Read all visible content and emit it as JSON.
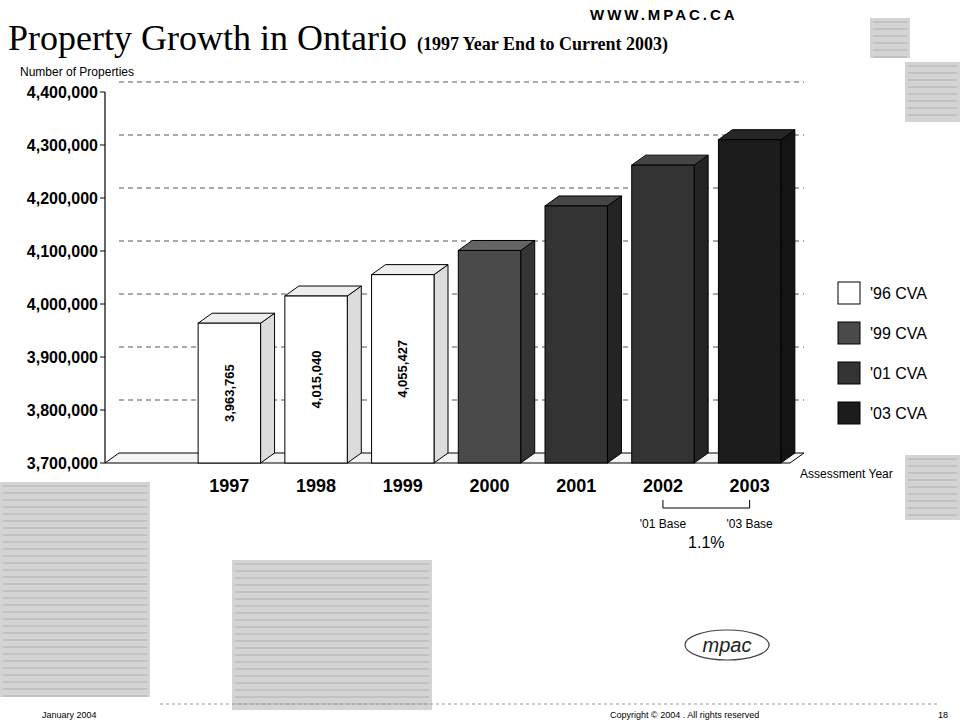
{
  "chart_data": {
    "type": "bar",
    "title": "Property Growth in Ontario",
    "subtitle": "(1997 Year End to Current 2003)",
    "y_label": "Number of Properties",
    "x_label": "Assessment Year",
    "categories": [
      "1997",
      "1998",
      "1999",
      "2000",
      "2001",
      "2002",
      "2003"
    ],
    "series": [
      {
        "name": "'96 CVA",
        "color": "#ffffff",
        "values": [
          3963765,
          4015040,
          4055427,
          null,
          null,
          null,
          null
        ],
        "value_labels": [
          "3,963,765",
          "4,015,040",
          "4,055,427",
          null,
          null,
          null,
          null
        ]
      },
      {
        "name": "'99 CVA",
        "color": "#4a4a4a",
        "values": [
          null,
          null,
          null,
          4101000,
          null,
          null,
          null
        ]
      },
      {
        "name": "'01 CVA",
        "color": "#333333",
        "values": [
          null,
          null,
          null,
          null,
          4185000,
          4262000,
          null
        ]
      },
      {
        "name": "'03 CVA",
        "color": "#1c1c1c",
        "values": [
          null,
          null,
          null,
          null,
          null,
          null,
          4310000
        ]
      }
    ],
    "stacked": true,
    "data_labels": true,
    "grid": true,
    "legend": "right",
    "ylim": [
      3700000,
      4400000
    ],
    "yticks": [
      {
        "value": 3700000,
        "label": "3,700,000"
      },
      {
        "value": 3800000,
        "label": "3,800,000"
      },
      {
        "value": 3900000,
        "label": "3,900,000"
      },
      {
        "value": 4000000,
        "label": "4,000,000"
      },
      {
        "value": 4100000,
        "label": "4,100,000"
      },
      {
        "value": 4200000,
        "label": "4,200,000"
      },
      {
        "value": 4300000,
        "label": "4,300,000"
      },
      {
        "value": 4400000,
        "label": "4,400,000"
      }
    ],
    "annotations": [
      {
        "text": "'01 Base"
      },
      {
        "text": "'03 Base"
      },
      {
        "text": "1.1%"
      }
    ]
  },
  "page": {
    "url": "WWW.MPAC.CA",
    "logo": "mpac",
    "date": "January 2004",
    "copyright": "Copyright © 2004 . All rights reserved",
    "page_number": "18"
  }
}
